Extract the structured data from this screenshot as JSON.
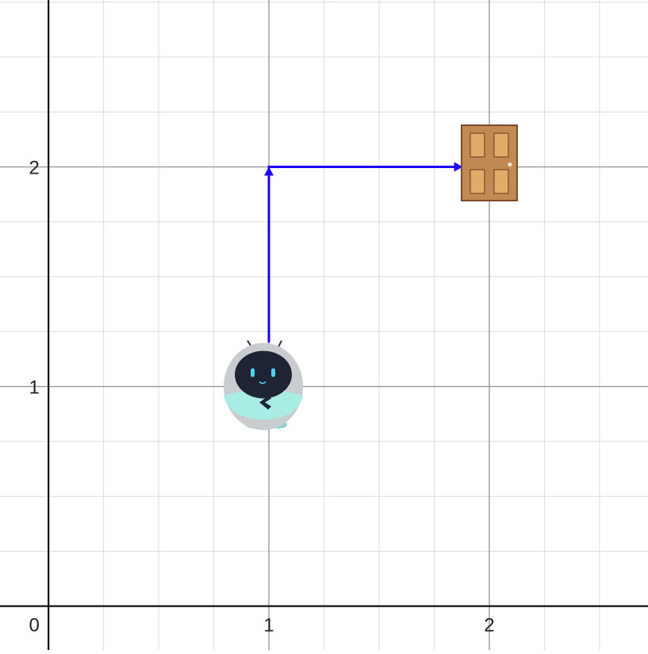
{
  "grid": {
    "x_range": [
      -0.22,
      2.72
    ],
    "y_range": [
      -0.2,
      2.76
    ],
    "minor_step": 0.25,
    "major_step": 1,
    "x_tick_labels": [
      {
        "value": 0,
        "label": "0"
      },
      {
        "value": 1,
        "label": "1"
      },
      {
        "value": 2,
        "label": "2"
      }
    ],
    "y_tick_labels": [
      {
        "value": 1,
        "label": "1"
      },
      {
        "value": 2,
        "label": "2"
      }
    ]
  },
  "colors": {
    "minor_grid": "#dcdcdc",
    "major_grid": "#9a9a9a",
    "axis": "#111111",
    "path": "#1d00ff",
    "door": "#c18a54",
    "door_panel": "#e0ac6a",
    "door_outline": "#7a4a26",
    "robot_body": "#c9cdd0",
    "robot_face": "#1e2433",
    "robot_eyes": "#4fd2ef",
    "robot_belt": "#a8ece4"
  },
  "robot": {
    "icon": "robot-icon",
    "position": [
      1,
      1
    ]
  },
  "door": {
    "icon": "door-icon",
    "position": [
      2,
      2
    ]
  },
  "path": {
    "points": [
      [
        1,
        1.2
      ],
      [
        1,
        2
      ],
      [
        1.88,
        2
      ]
    ]
  }
}
